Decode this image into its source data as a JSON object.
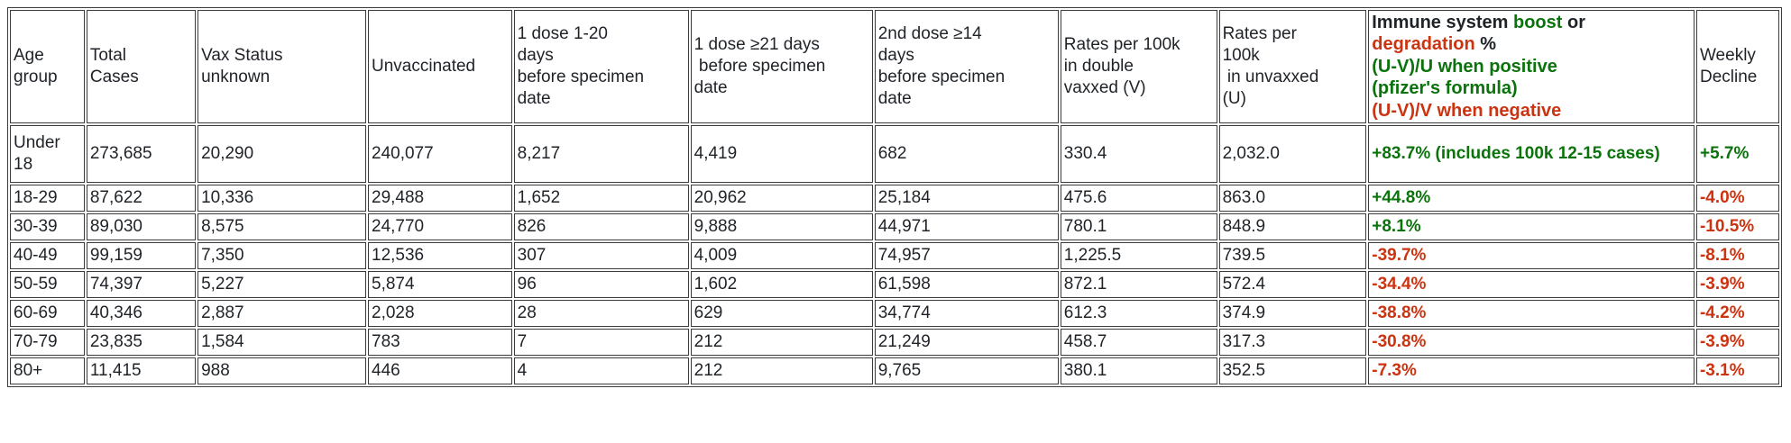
{
  "colors": {
    "positive_green": "#0b730b",
    "negative_red": "#cc3311",
    "text_dark": "#1f2328",
    "grid_border": "#3c3c3c"
  },
  "table": {
    "headers": [
      "Age\ngroup",
      "Total\nCases",
      "Vax Status\nunknown",
      "Unvaccinated",
      "1 dose 1-20\ndays\nbefore specimen\ndate",
      "1 dose ≥21 days\n before specimen\ndate",
      "2nd dose ≥14\ndays\nbefore specimen\ndate",
      "Rates per 100k\nin double\nvaxxed (V)",
      "Rates per\n100k\n in unvaxxed\n(U)",
      "Weekly\nDecline"
    ],
    "immune_header": {
      "lines": [
        [
          {
            "text": "Immune system ",
            "color": "dark"
          },
          {
            "text": "boost",
            "color": "green"
          },
          {
            "text": " or",
            "color": "dark"
          }
        ],
        [
          {
            "text": "degradation",
            "color": "red"
          },
          {
            "text": " %",
            "color": "dark"
          }
        ],
        [
          {
            "text": "(U-V)/U when positive",
            "color": "green"
          }
        ],
        [
          {
            "text": "(pfizer's formula)",
            "color": "green"
          }
        ],
        [
          {
            "text": "(U-V)/V when negative",
            "color": "red"
          }
        ]
      ]
    },
    "rows": [
      {
        "age_group": "Under\n18",
        "total_cases": "273,685",
        "vax_unknown": "20,290",
        "unvaccinated": "240,077",
        "dose1_1_20": "8,217",
        "dose1_ge21": "4,419",
        "dose2_ge14": "682",
        "rate_vaxxed": "330.4",
        "rate_unvaxxed": "2,032.0",
        "boost": {
          "text": "+83.7% (includes 100k 12-15 cases)",
          "color": "green"
        },
        "weekly_decline": {
          "text": "+5.7%",
          "color": "green"
        }
      },
      {
        "age_group": "18-29",
        "total_cases": "87,622",
        "vax_unknown": "10,336",
        "unvaccinated": "29,488",
        "dose1_1_20": "1,652",
        "dose1_ge21": "20,962",
        "dose2_ge14": "25,184",
        "rate_vaxxed": "475.6",
        "rate_unvaxxed": "863.0",
        "boost": {
          "text": "+44.8%",
          "color": "green"
        },
        "weekly_decline": {
          "text": "-4.0%",
          "color": "red"
        }
      },
      {
        "age_group": "30-39",
        "total_cases": "89,030",
        "vax_unknown": "8,575",
        "unvaccinated": "24,770",
        "dose1_1_20": "826",
        "dose1_ge21": "9,888",
        "dose2_ge14": "44,971",
        "rate_vaxxed": "780.1",
        "rate_unvaxxed": "848.9",
        "boost": {
          "text": "+8.1%",
          "color": "green"
        },
        "weekly_decline": {
          "text": "-10.5%",
          "color": "red"
        }
      },
      {
        "age_group": "40-49",
        "total_cases": "99,159",
        "vax_unknown": "7,350",
        "unvaccinated": "12,536",
        "dose1_1_20": "307",
        "dose1_ge21": "4,009",
        "dose2_ge14": "74,957",
        "rate_vaxxed": "1,225.5",
        "rate_unvaxxed": "739.5",
        "boost": {
          "text": "-39.7%",
          "color": "red"
        },
        "weekly_decline": {
          "text": "-8.1%",
          "color": "red"
        }
      },
      {
        "age_group": "50-59",
        "total_cases": "74,397",
        "vax_unknown": "5,227",
        "unvaccinated": "5,874",
        "dose1_1_20": "96",
        "dose1_ge21": "1,602",
        "dose2_ge14": "61,598",
        "rate_vaxxed": "872.1",
        "rate_unvaxxed": "572.4",
        "boost": {
          "text": "-34.4%",
          "color": "red"
        },
        "weekly_decline": {
          "text": "-3.9%",
          "color": "red"
        }
      },
      {
        "age_group": "60-69",
        "total_cases": "40,346",
        "vax_unknown": "2,887",
        "unvaccinated": "2,028",
        "dose1_1_20": "28",
        "dose1_ge21": "629",
        "dose2_ge14": "34,774",
        "rate_vaxxed": "612.3",
        "rate_unvaxxed": "374.9",
        "boost": {
          "text": "-38.8%",
          "color": "red"
        },
        "weekly_decline": {
          "text": "-4.2%",
          "color": "red"
        }
      },
      {
        "age_group": "70-79",
        "total_cases": "23,835",
        "vax_unknown": "1,584",
        "unvaccinated": "783",
        "dose1_1_20": "7",
        "dose1_ge21": "212",
        "dose2_ge14": "21,249",
        "rate_vaxxed": "458.7",
        "rate_unvaxxed": "317.3",
        "boost": {
          "text": "-30.8%",
          "color": "red"
        },
        "weekly_decline": {
          "text": "-3.9%",
          "color": "red"
        }
      },
      {
        "age_group": "80+",
        "total_cases": "11,415",
        "vax_unknown": "988",
        "unvaccinated": "446",
        "dose1_1_20": "4",
        "dose1_ge21": "212",
        "dose2_ge14": "9,765",
        "rate_vaxxed": "380.1",
        "rate_unvaxxed": "352.5",
        "boost": {
          "text": "-7.3%",
          "color": "red"
        },
        "weekly_decline": {
          "text": "-3.1%",
          "color": "red"
        }
      }
    ]
  }
}
